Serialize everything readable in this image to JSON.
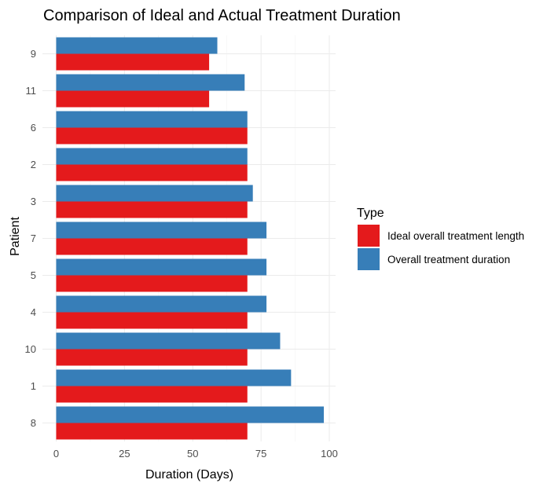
{
  "chart_data": {
    "type": "bar",
    "orientation": "horizontal",
    "title": "Comparison of Ideal and Actual Treatment Duration",
    "xlabel": "Duration (Days)",
    "ylabel": "Patient",
    "xlim": [
      0,
      100
    ],
    "x_ticks": [
      "0",
      "25",
      "50",
      "75",
      "100"
    ],
    "grid": true,
    "categories": [
      "9",
      "11",
      "6",
      "2",
      "3",
      "7",
      "5",
      "4",
      "10",
      "1",
      "8"
    ],
    "series": [
      {
        "name": "Ideal overall treatment length",
        "color": "#e41a1c",
        "values": [
          56,
          56,
          70,
          70,
          70,
          70,
          70,
          70,
          70,
          70,
          70
        ]
      },
      {
        "name": "Overall treatment duration",
        "color": "#377eb8",
        "values": [
          59,
          69,
          70,
          70,
          72,
          77,
          77,
          77,
          82,
          86,
          98
        ]
      }
    ],
    "legend": {
      "title": "Type",
      "position": "right"
    }
  }
}
